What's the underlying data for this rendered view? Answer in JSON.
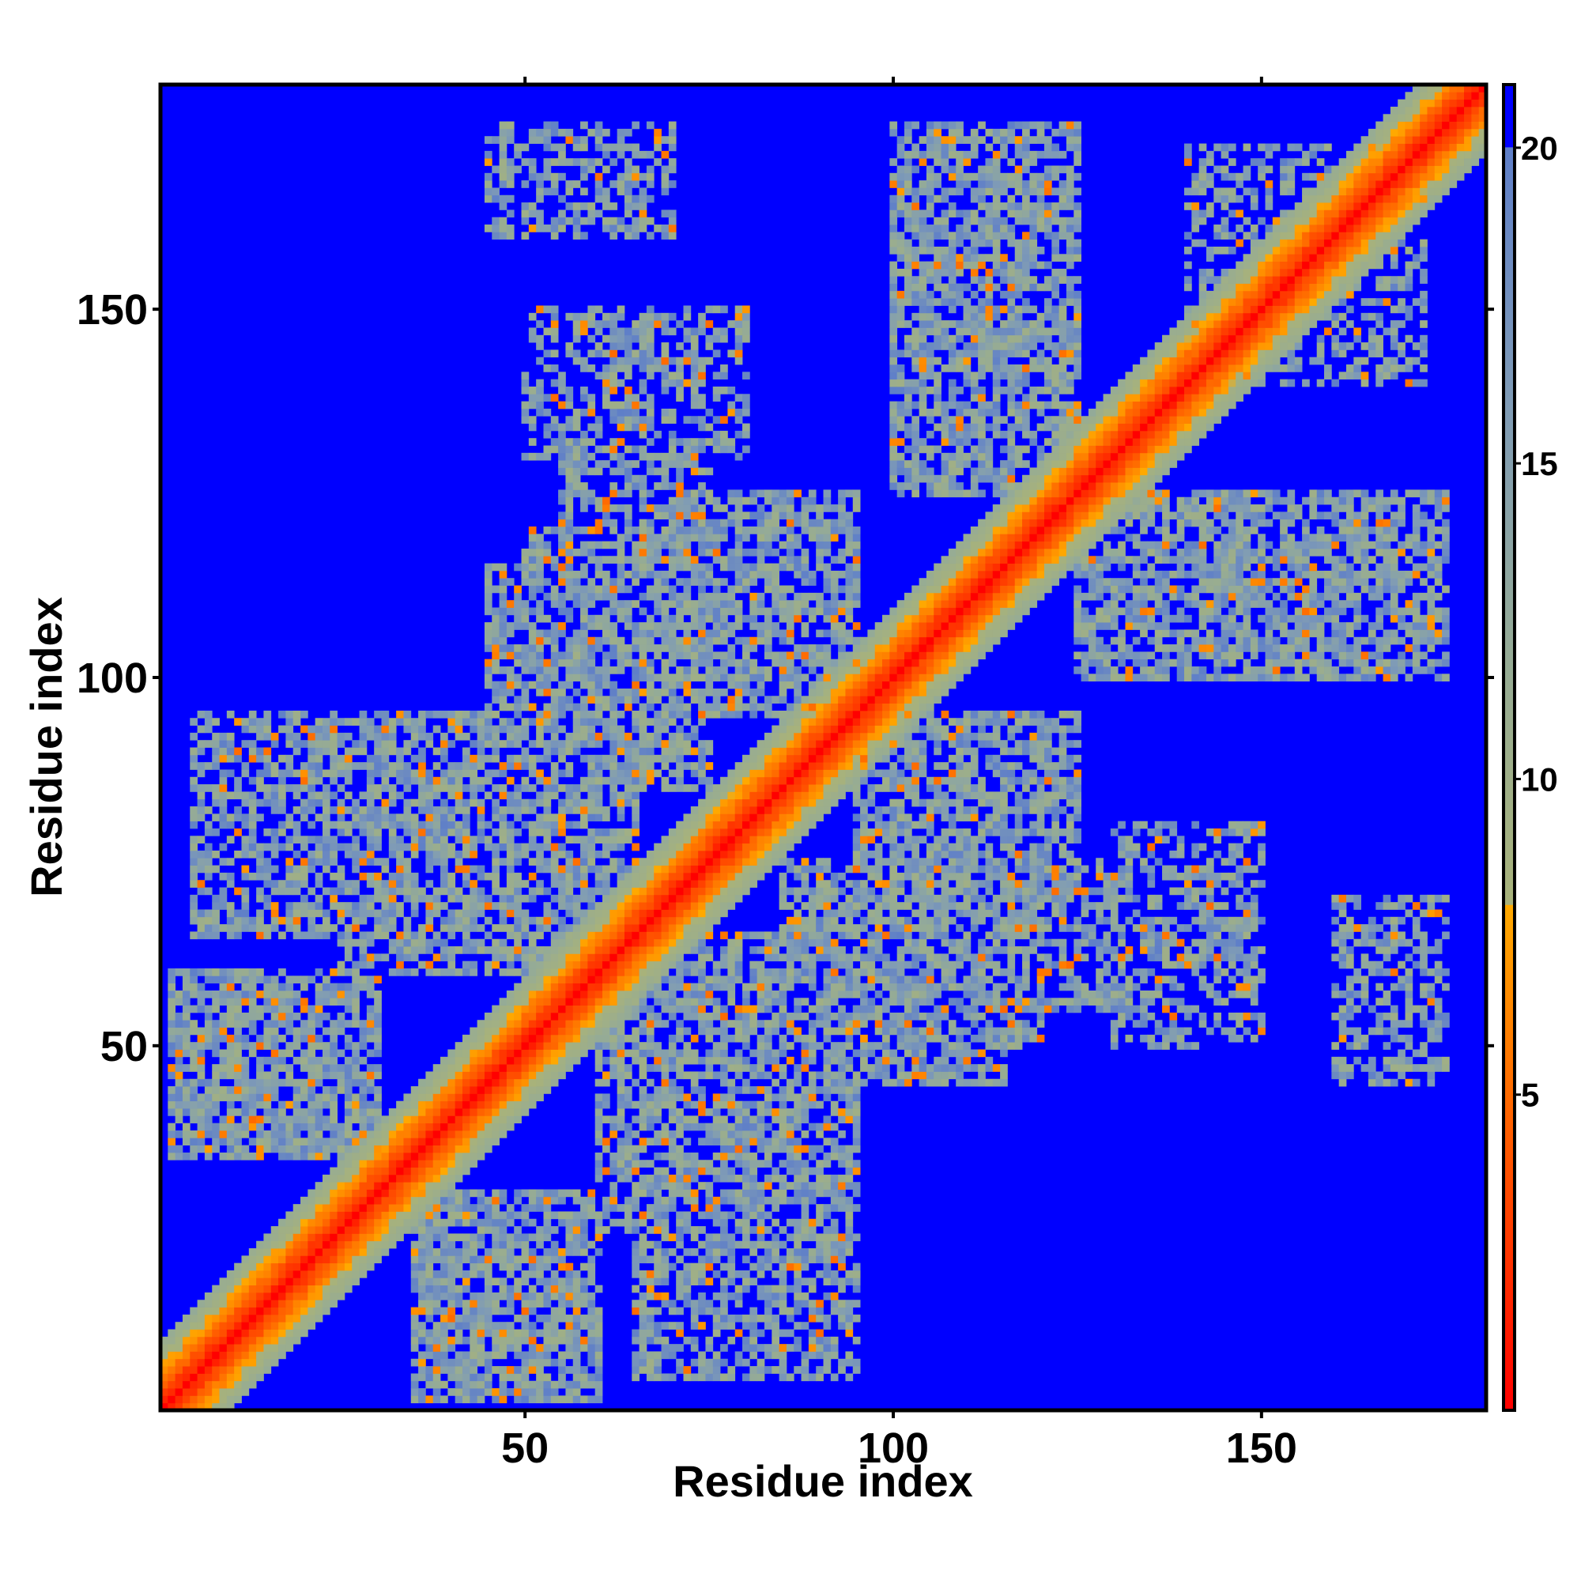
{
  "chart_data": {
    "type": "heatmap",
    "title": "",
    "xlabel": "Residue index",
    "ylabel": "Residue index",
    "n_residues": 180,
    "xlim": [
      1,
      180
    ],
    "ylim": [
      1,
      180
    ],
    "x_ticks": [
      50,
      100,
      150
    ],
    "y_ticks": [
      50,
      100,
      150
    ],
    "x_tick_labels": [
      "50",
      "100",
      "150"
    ],
    "y_tick_labels": [
      "50",
      "100",
      "150"
    ],
    "colorbar": {
      "range": [
        0,
        21
      ],
      "ticks": [
        5,
        10,
        15,
        20
      ],
      "tick_labels": [
        "5",
        "10",
        "15",
        "20"
      ],
      "stops": [
        {
          "value": 0,
          "color": "#ff0000"
        },
        {
          "value": 5,
          "color": "#ff6a00"
        },
        {
          "value": 8,
          "color": "#ffaa00"
        },
        {
          "value": 8.01,
          "color": "#a8b27a"
        },
        {
          "value": 12,
          "color": "#95ab96"
        },
        {
          "value": 16,
          "color": "#7f9bb6"
        },
        {
          "value": 20,
          "color": "#5f7fc8"
        },
        {
          "value": 20.01,
          "color": "#0000ff"
        },
        {
          "value": 21,
          "color": "#0000ff"
        }
      ]
    },
    "values_note": "Symmetric residue distance map (Angstrom); values beyond 20 shown as background blue.",
    "contact_bands": [
      {
        "i": [
          2,
          30
        ],
        "j": [
          35,
          60
        ],
        "strength": 0.8
      },
      {
        "i": [
          20,
          50
        ],
        "j": [
          75,
          95
        ],
        "strength": 0.7
      },
      {
        "i": [
          40,
          65
        ],
        "j": [
          65,
          85
        ],
        "strength": 0.7
      },
      {
        "i": [
          50,
          80
        ],
        "j": [
          95,
          120
        ],
        "strength": 0.75
      },
      {
        "i": [
          60,
          90
        ],
        "j": [
          25,
          55
        ],
        "strength": 0.7
      },
      {
        "i": [
          65,
          95
        ],
        "j": [
          5,
          30
        ],
        "strength": 0.6
      },
      {
        "i": [
          85,
          115
        ],
        "j": [
          45,
          75
        ],
        "strength": 0.75
      },
      {
        "i": [
          95,
          125
        ],
        "j": [
          70,
          95
        ],
        "strength": 0.7
      },
      {
        "i": [
          100,
          125
        ],
        "j": [
          140,
          175
        ],
        "strength": 0.7
      },
      {
        "i": [
          110,
          135
        ],
        "j": [
          55,
          75
        ],
        "strength": 0.6
      },
      {
        "i": [
          125,
          160
        ],
        "j": [
          100,
          125
        ],
        "strength": 0.75
      },
      {
        "i": [
          140,
          175
        ],
        "j": [
          100,
          115
        ],
        "strength": 0.6
      },
      {
        "i": [
          160,
          175
        ],
        "j": [
          55,
          70
        ],
        "strength": 0.55
      },
      {
        "i": [
          45,
          70
        ],
        "j": [
          160,
          175
        ],
        "strength": 0.55
      },
      {
        "i": [
          50,
          80
        ],
        "j": [
          130,
          150
        ],
        "strength": 0.55
      },
      {
        "i": [
          140,
          170
        ],
        "j": [
          148,
          172
        ],
        "strength": 0.5
      }
    ]
  }
}
